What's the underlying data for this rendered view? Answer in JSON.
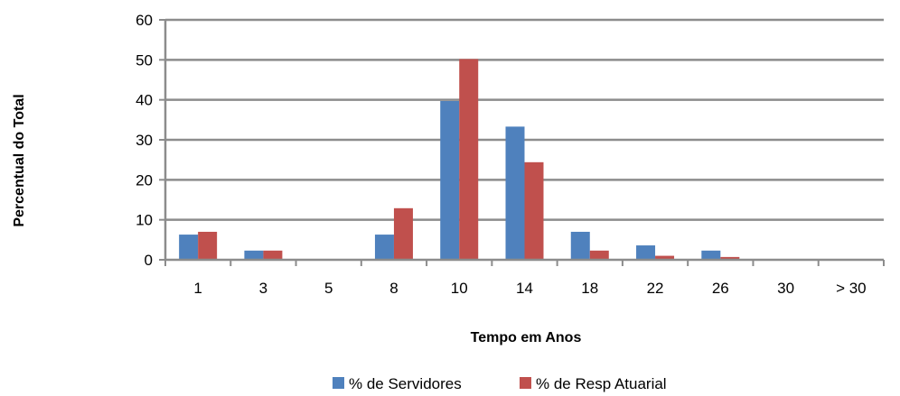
{
  "chart_data": {
    "type": "bar",
    "categories": [
      "1",
      "3",
      "5",
      "8",
      "10",
      "14",
      "18",
      "22",
      "26",
      "30",
      "> 30"
    ],
    "series": [
      {
        "name": "% de Servidores",
        "color": "#4F81BD",
        "values": [
          6.3,
          2.3,
          0,
          6.3,
          39.7,
          33.3,
          7.0,
          3.6,
          2.3,
          0,
          0
        ]
      },
      {
        "name": "% de Resp Atuarial",
        "color": "#C0504D",
        "values": [
          7.0,
          2.3,
          0,
          12.9,
          50.2,
          24.4,
          2.3,
          1.0,
          0.7,
          0,
          0
        ]
      }
    ],
    "title": "",
    "xlabel": "Tempo em Anos",
    "ylabel": "Percentual do Total",
    "ylim": [
      0,
      60
    ],
    "yticks": [
      "0",
      "10",
      "20",
      "30",
      "40",
      "50",
      "60"
    ],
    "grid": true,
    "legend": "bottom"
  }
}
